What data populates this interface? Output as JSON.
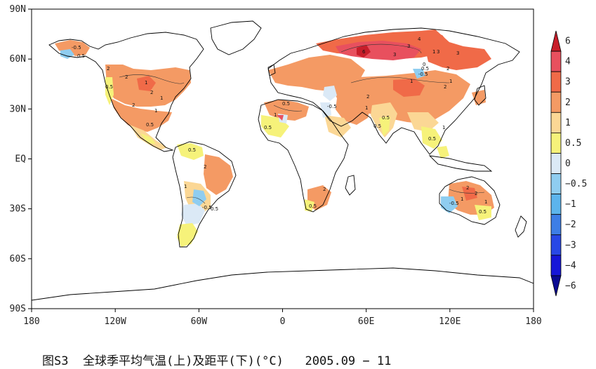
{
  "map": {
    "y_ticks": [
      "90N",
      "60N",
      "30N",
      "EQ",
      "30S",
      "60S",
      "90S"
    ],
    "x_ticks": [
      "180",
      "120W",
      "60W",
      "0",
      "60E",
      "120E",
      "180"
    ]
  },
  "colorbar": {
    "levels": [
      "6",
      "4",
      "3",
      "2",
      "1",
      "0.5",
      "0",
      "−0.5",
      "−1",
      "−2",
      "−3",
      "−4",
      "−6"
    ],
    "colors": [
      "#c81e2a",
      "#e8505e",
      "#f06a48",
      "#f49a64",
      "#fbd795",
      "#f6f27a",
      "#dbe9f6",
      "#8fcdf0",
      "#5cb4ec",
      "#3d7ee6",
      "#2848e6",
      "#1616d8",
      "#0a0a92"
    ]
  },
  "caption": {
    "text": "图S3  全球季平均气温(上)及距平(下)(°C)   2005.09 − 11"
  },
  "contour_labels": [
    "-0.5",
    "0.5",
    "2",
    "2",
    "1",
    "2",
    "0.5",
    "1",
    "2",
    "1",
    "0.5",
    "0.5",
    "-0.5",
    "1",
    "2",
    "0.5",
    "3",
    "4",
    "3",
    "2",
    "0.5",
    "1",
    "-0.5",
    "6",
    "3",
    "1",
    "0.5",
    "2",
    "1",
    "0.5",
    "2",
    "1",
    "0",
    "1",
    "3",
    "2",
    "2",
    "1",
    "0.5",
    "1",
    "-0.5",
    "0.5",
    "1",
    "2",
    "0.5",
    "-0.5",
    "0.5",
    "0.5"
  ]
}
